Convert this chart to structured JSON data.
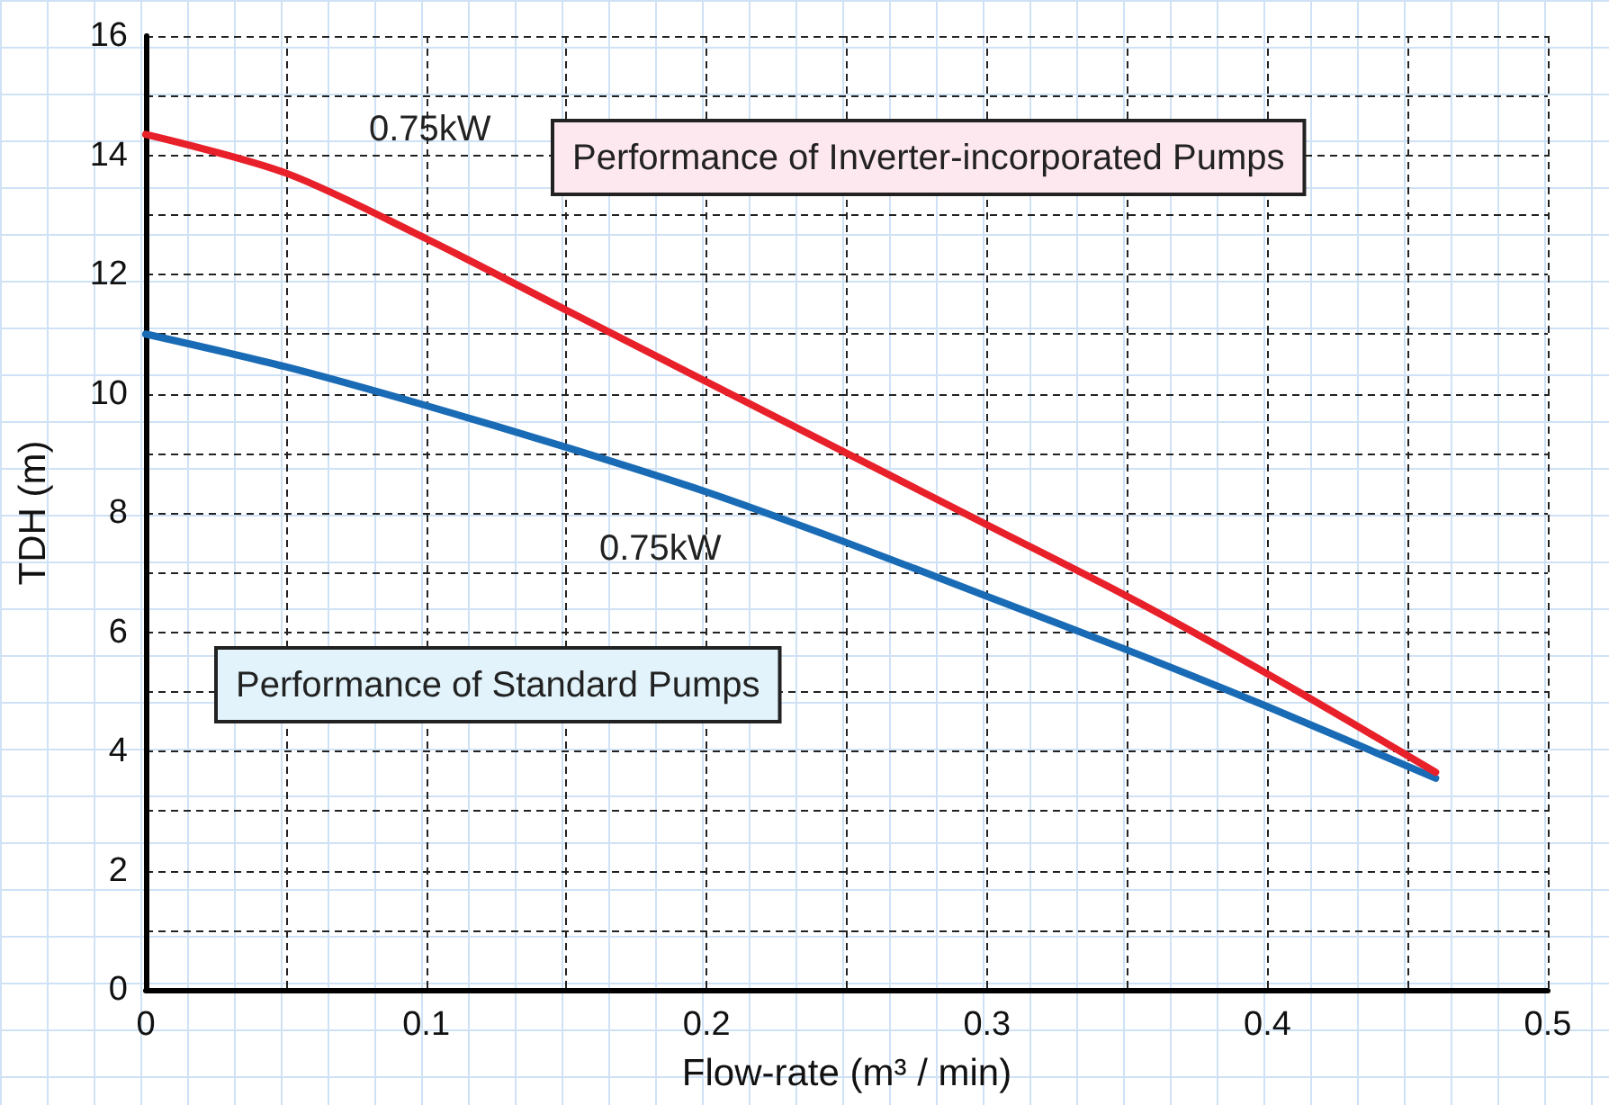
{
  "chart_data": {
    "type": "line",
    "xlabel": "Flow-rate (m³ / min)",
    "ylabel": "TDH (m)",
    "x": [
      0,
      0.05,
      0.1,
      0.15,
      0.2,
      0.25,
      0.3,
      0.35,
      0.4,
      0.46
    ],
    "series": [
      {
        "name": "0.75kW",
        "color": "#e8202a",
        "values": [
          14.35,
          13.7,
          12.6,
          11.4,
          10.2,
          9.0,
          7.8,
          6.6,
          5.3,
          3.65
        ]
      },
      {
        "name": "0.75kW",
        "color": "#1a6bb5",
        "values": [
          11.0,
          10.45,
          9.8,
          9.1,
          8.35,
          7.5,
          6.6,
          5.7,
          4.75,
          3.55
        ]
      }
    ],
    "annotations": [
      "Performance of Inverter-incorporated Pumps",
      "Performance of Standard Pumps"
    ],
    "xlim": [
      0,
      0.5
    ],
    "xticks": [
      0,
      {
        "value": 0.05,
        "label": null
      },
      0.1,
      {
        "value": 0.15,
        "label": null
      },
      0.2,
      {
        "value": 0.25,
        "label": null
      },
      0.3,
      {
        "value": 0.35,
        "label": null
      },
      0.4,
      {
        "value": 0.45,
        "label": null
      },
      0.5
    ],
    "ylim": [
      0,
      16
    ],
    "yticks": [
      0,
      {
        "value": 1,
        "label": null
      },
      2,
      {
        "value": 3,
        "label": null
      },
      4,
      {
        "value": 5,
        "label": null
      },
      6,
      {
        "value": 7,
        "label": null
      },
      8,
      {
        "value": 9,
        "label": null
      },
      10,
      {
        "value": 11,
        "label": null
      },
      12,
      {
        "value": 13,
        "label": null
      },
      14,
      {
        "value": 15,
        "label": null
      },
      16
    ],
    "grid": true,
    "legend": false,
    "marker": "none",
    "line_style": "solid"
  }
}
